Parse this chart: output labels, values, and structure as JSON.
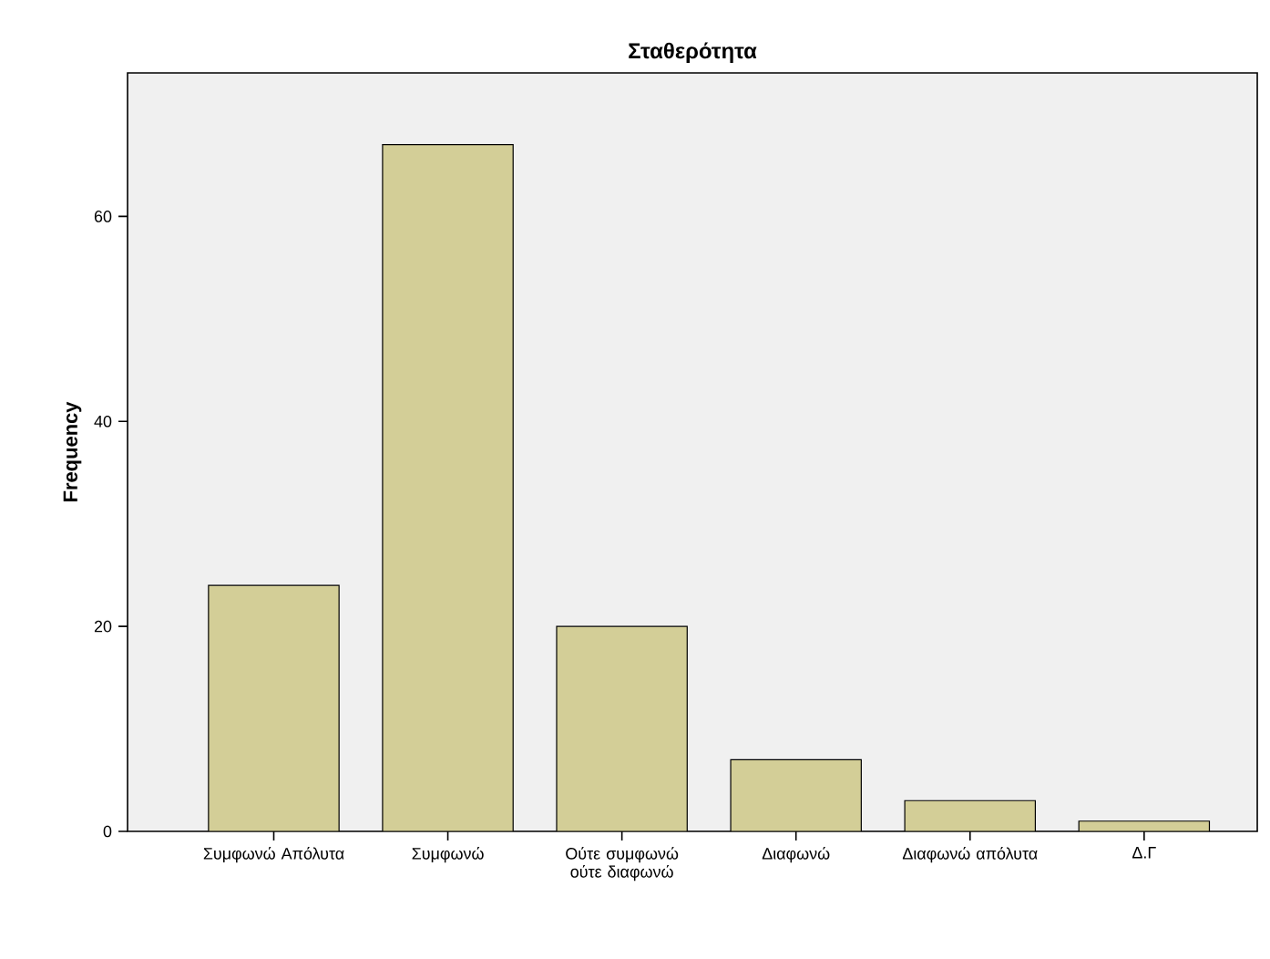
{
  "chart_data": {
    "type": "bar",
    "title": "Σταθερότητα",
    "ylabel": "Frequency",
    "categories": [
      "Συμφωνώ Απόλυτα",
      "Συμφωνώ",
      "Ούτε συμφωνώ ούτε διαφωνώ",
      "Διαφωνώ",
      "Διαφωνώ απόλυτα",
      "Δ.Γ"
    ],
    "values": [
      24,
      67,
      20,
      7,
      3,
      1
    ],
    "color": "#d3ce97",
    "ylim": [
      0,
      74
    ],
    "yticks": [
      0,
      20,
      40,
      60
    ],
    "grid": false
  }
}
